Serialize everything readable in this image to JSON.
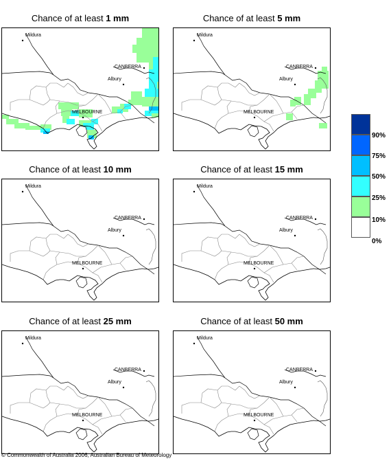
{
  "panels": [
    {
      "prefix": "Chance of at least ",
      "value": "1 mm",
      "level": "1mm"
    },
    {
      "prefix": "Chance of at least ",
      "value": "5 mm",
      "level": "5mm"
    },
    {
      "prefix": "Chance of at least ",
      "value": "10 mm",
      "level": "10mm"
    },
    {
      "prefix": "Chance of at least ",
      "value": "15 mm",
      "level": "15mm"
    },
    {
      "prefix": "Chance of at least ",
      "value": "25 mm",
      "level": "25mm"
    },
    {
      "prefix": "Chance of at least ",
      "value": "50 mm",
      "level": "50mm"
    }
  ],
  "places": {
    "mildura": "Mildura",
    "canberra": "CANBERRA",
    "albury": "Albury",
    "melbourne": "MELBOURNE"
  },
  "legend": {
    "colors": [
      "#003399",
      "#0066ff",
      "#00bfff",
      "#33ffff",
      "#99ff99",
      "#ffffff"
    ],
    "labels": [
      "90%",
      "75%",
      "50%",
      "25%",
      "10%",
      "0%"
    ]
  },
  "copyright": "© Commonwealth of Australia 2006, Australian Bureau of Meteorology"
}
